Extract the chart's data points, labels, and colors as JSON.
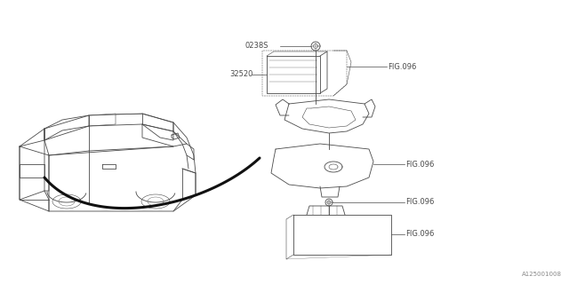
{
  "bg_color": "#ffffff",
  "line_color": "#4a4a4a",
  "text_color": "#4a4a4a",
  "fig_width": 6.4,
  "fig_height": 3.2,
  "dpi": 100,
  "watermark": "A125001008",
  "label_part1": "0238S",
  "label_part2": "32520",
  "label_fig": "FIG.096",
  "font_size": 6.0,
  "lw_main": 0.6,
  "lw_thin": 0.4
}
